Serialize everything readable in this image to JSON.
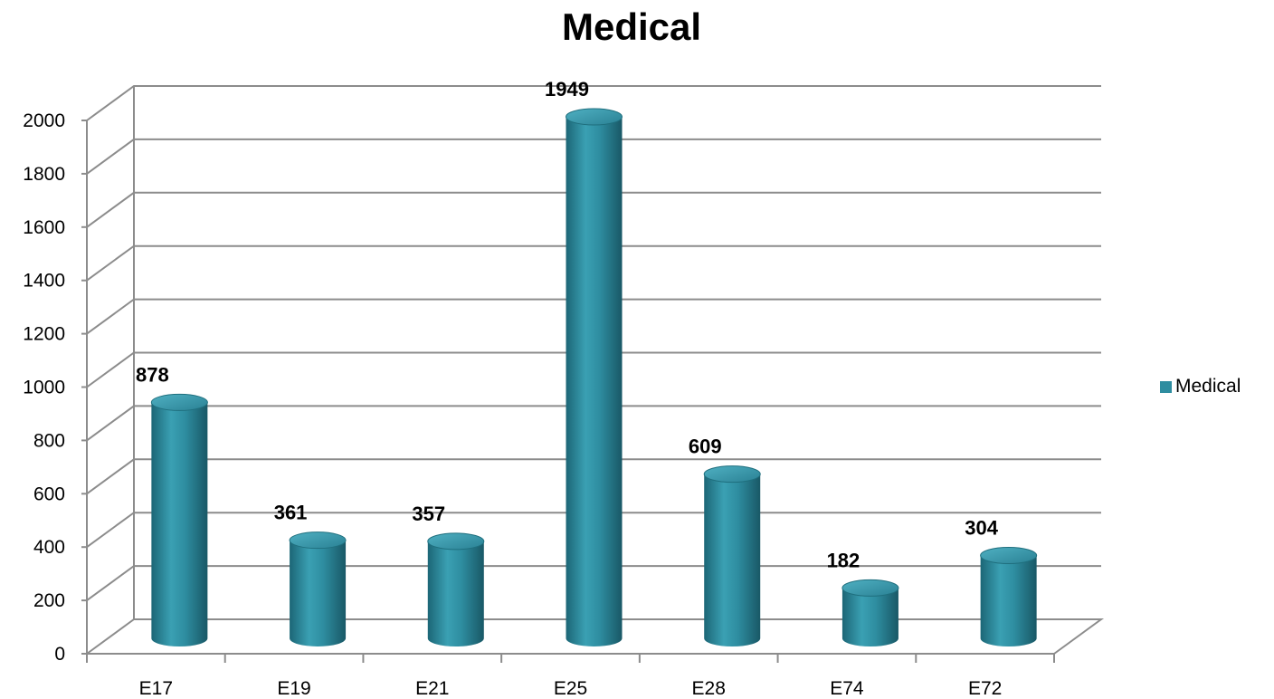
{
  "chart_data": {
    "type": "bar",
    "title": "Medical",
    "categories": [
      "E17",
      "E19",
      "E21",
      "E25",
      "E28",
      "E74",
      "E72"
    ],
    "series": [
      {
        "name": "Medical",
        "values": [
          878,
          361,
          357,
          1949,
          609,
          182,
          304
        ]
      }
    ],
    "ylim": [
      0,
      2000
    ],
    "yticks": [
      0,
      200,
      400,
      600,
      800,
      1000,
      1200,
      1400,
      1600,
      1800,
      2000
    ],
    "grid": true,
    "legend_position": "right",
    "bar_shape": "cylinder",
    "colors": {
      "series": "#2e8da0",
      "series_dark": "#1a5f6e",
      "series_light": "#4fb0c2",
      "grid": "#8c8c8c"
    }
  }
}
